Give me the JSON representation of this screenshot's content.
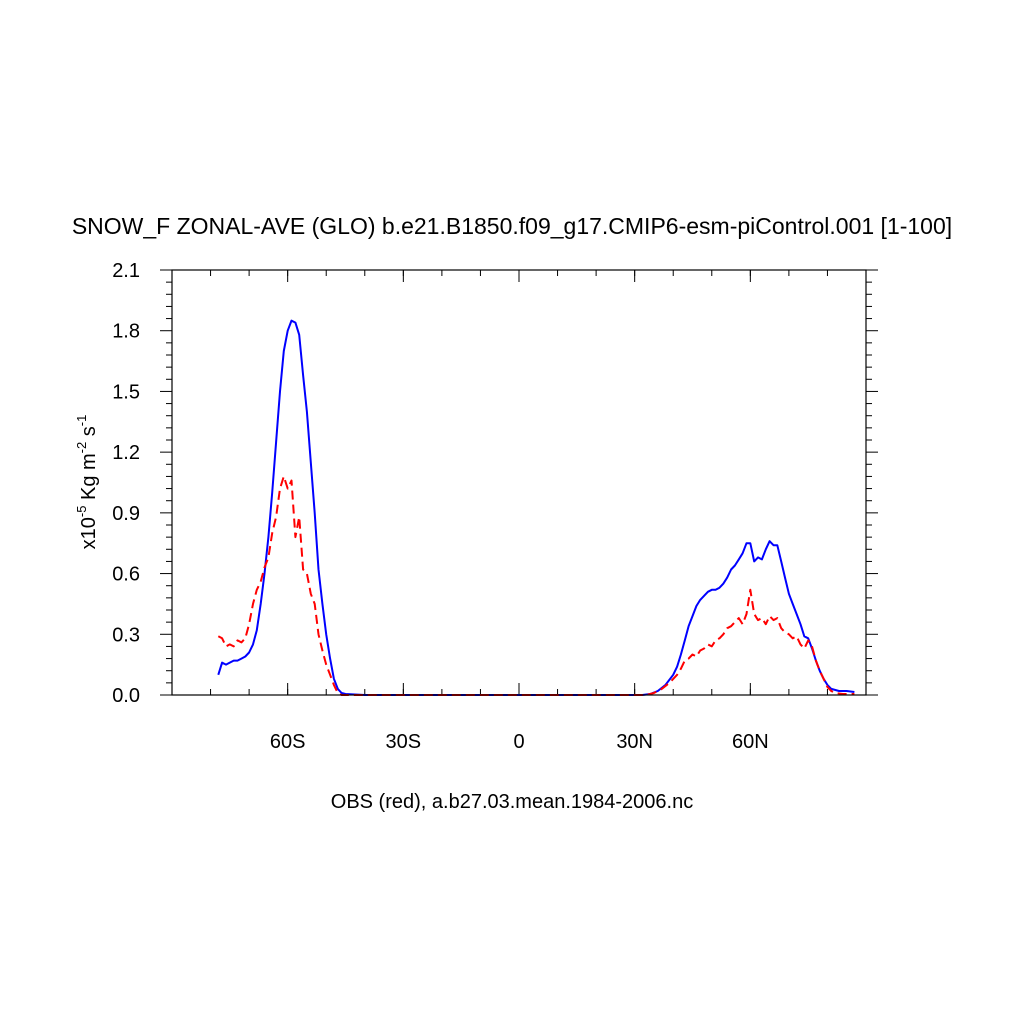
{
  "chart_data": {
    "type": "line",
    "title": "SNOW_F ZONAL-AVE (GLO) b.e21.B1850.f09_g17.CMIP6-esm-piControl.001 [1-100]",
    "xlabel": "OBS (red), a.b27.03.mean.1984-2006.nc",
    "ylabel": {
      "prefix": "x10",
      "exp1": "-5",
      "mid": " Kg m",
      "exp2": "-2",
      "mid2": " s",
      "exp3": "-1"
    },
    "xlim": [
      -90,
      90
    ],
    "ylim": [
      0,
      2.1
    ],
    "y_ticks": [
      {
        "value": 0.0,
        "label": "0.0"
      },
      {
        "value": 0.3,
        "label": "0.3"
      },
      {
        "value": 0.6,
        "label": "0.6"
      },
      {
        "value": 0.9,
        "label": "0.9"
      },
      {
        "value": 1.2,
        "label": "1.2"
      },
      {
        "value": 1.5,
        "label": "1.5"
      },
      {
        "value": 1.8,
        "label": "1.8"
      },
      {
        "value": 2.1,
        "label": "2.1"
      }
    ],
    "x_ticks": [
      {
        "value": -60,
        "label": "60S"
      },
      {
        "value": -30,
        "label": "30S"
      },
      {
        "value": 0,
        "label": "0"
      },
      {
        "value": 30,
        "label": "30N"
      },
      {
        "value": 60,
        "label": "60N"
      }
    ],
    "series": [
      {
        "color": "#0000ff",
        "dash": "solid",
        "points": [
          [
            -78,
            0.1
          ],
          [
            -77,
            0.16
          ],
          [
            -76,
            0.15
          ],
          [
            -75,
            0.16
          ],
          [
            -74,
            0.17
          ],
          [
            -73,
            0.17
          ],
          [
            -72,
            0.18
          ],
          [
            -71,
            0.19
          ],
          [
            -70,
            0.21
          ],
          [
            -69,
            0.25
          ],
          [
            -68,
            0.32
          ],
          [
            -67,
            0.45
          ],
          [
            -66,
            0.6
          ],
          [
            -65,
            0.78
          ],
          [
            -64,
            1.0
          ],
          [
            -63,
            1.25
          ],
          [
            -62,
            1.5
          ],
          [
            -61,
            1.7
          ],
          [
            -60,
            1.8
          ],
          [
            -59,
            1.85
          ],
          [
            -58,
            1.84
          ],
          [
            -57,
            1.78
          ],
          [
            -56,
            1.58
          ],
          [
            -55,
            1.4
          ],
          [
            -54,
            1.15
          ],
          [
            -53,
            0.9
          ],
          [
            -52,
            0.62
          ],
          [
            -51,
            0.45
          ],
          [
            -50,
            0.3
          ],
          [
            -49,
            0.18
          ],
          [
            -48,
            0.08
          ],
          [
            -47,
            0.03
          ],
          [
            -46,
            0.01
          ],
          [
            -45,
            0.005
          ],
          [
            -40,
            0.0
          ],
          [
            -20,
            0.0
          ],
          [
            0,
            0.0
          ],
          [
            20,
            0.0
          ],
          [
            32,
            0.0
          ],
          [
            34,
            0.005
          ],
          [
            36,
            0.02
          ],
          [
            38,
            0.05
          ],
          [
            40,
            0.1
          ],
          [
            41,
            0.14
          ],
          [
            42,
            0.2
          ],
          [
            43,
            0.27
          ],
          [
            44,
            0.34
          ],
          [
            45,
            0.39
          ],
          [
            46,
            0.44
          ],
          [
            47,
            0.47
          ],
          [
            48,
            0.49
          ],
          [
            49,
            0.51
          ],
          [
            50,
            0.52
          ],
          [
            51,
            0.52
          ],
          [
            52,
            0.53
          ],
          [
            53,
            0.55
          ],
          [
            54,
            0.58
          ],
          [
            55,
            0.62
          ],
          [
            56,
            0.64
          ],
          [
            57,
            0.67
          ],
          [
            58,
            0.7
          ],
          [
            59,
            0.75
          ],
          [
            60,
            0.75
          ],
          [
            61,
            0.66
          ],
          [
            62,
            0.68
          ],
          [
            63,
            0.67
          ],
          [
            64,
            0.72
          ],
          [
            65,
            0.76
          ],
          [
            66,
            0.74
          ],
          [
            67,
            0.74
          ],
          [
            68,
            0.66
          ],
          [
            69,
            0.58
          ],
          [
            70,
            0.5
          ],
          [
            71,
            0.45
          ],
          [
            72,
            0.4
          ],
          [
            73,
            0.35
          ],
          [
            74,
            0.29
          ],
          [
            75,
            0.28
          ],
          [
            76,
            0.23
          ],
          [
            77,
            0.17
          ],
          [
            78,
            0.12
          ],
          [
            79,
            0.08
          ],
          [
            80,
            0.05
          ],
          [
            81,
            0.03
          ],
          [
            83,
            0.02
          ],
          [
            85,
            0.02
          ],
          [
            87,
            0.015
          ]
        ]
      },
      {
        "color": "#ff0000",
        "dash": "dashed",
        "points": [
          [
            -78,
            0.29
          ],
          [
            -77,
            0.28
          ],
          [
            -76,
            0.24
          ],
          [
            -75,
            0.25
          ],
          [
            -74,
            0.24
          ],
          [
            -73,
            0.27
          ],
          [
            -72,
            0.26
          ],
          [
            -71,
            0.28
          ],
          [
            -70,
            0.35
          ],
          [
            -69,
            0.45
          ],
          [
            -68,
            0.52
          ],
          [
            -67,
            0.56
          ],
          [
            -66,
            0.63
          ],
          [
            -65,
            0.68
          ],
          [
            -64,
            0.8
          ],
          [
            -63,
            0.88
          ],
          [
            -62,
            1.02
          ],
          [
            -61,
            1.08
          ],
          [
            -60,
            1.02
          ],
          [
            -59,
            1.06
          ],
          [
            -58,
            0.78
          ],
          [
            -57,
            0.88
          ],
          [
            -56,
            0.62
          ],
          [
            -55,
            0.6
          ],
          [
            -54,
            0.5
          ],
          [
            -53,
            0.45
          ],
          [
            -52,
            0.3
          ],
          [
            -51,
            0.22
          ],
          [
            -50,
            0.15
          ],
          [
            -49,
            0.1
          ],
          [
            -48,
            0.05
          ],
          [
            -47,
            0.01
          ],
          [
            -46,
            0.0
          ],
          [
            -40,
            0.0
          ],
          [
            -20,
            0.0
          ],
          [
            0,
            0.0
          ],
          [
            20,
            0.0
          ],
          [
            33,
            0.0
          ],
          [
            35,
            0.01
          ],
          [
            37,
            0.03
          ],
          [
            39,
            0.06
          ],
          [
            41,
            0.1
          ],
          [
            42,
            0.13
          ],
          [
            43,
            0.17
          ],
          [
            44,
            0.18
          ],
          [
            45,
            0.2
          ],
          [
            46,
            0.19
          ],
          [
            47,
            0.22
          ],
          [
            48,
            0.23
          ],
          [
            49,
            0.25
          ],
          [
            50,
            0.24
          ],
          [
            51,
            0.27
          ],
          [
            52,
            0.28
          ],
          [
            53,
            0.3
          ],
          [
            54,
            0.33
          ],
          [
            55,
            0.34
          ],
          [
            56,
            0.36
          ],
          [
            57,
            0.38
          ],
          [
            58,
            0.35
          ],
          [
            59,
            0.4
          ],
          [
            60,
            0.52
          ],
          [
            61,
            0.4
          ],
          [
            62,
            0.37
          ],
          [
            63,
            0.38
          ],
          [
            64,
            0.35
          ],
          [
            65,
            0.39
          ],
          [
            66,
            0.37
          ],
          [
            67,
            0.38
          ],
          [
            68,
            0.33
          ],
          [
            69,
            0.31
          ],
          [
            70,
            0.3
          ],
          [
            71,
            0.28
          ],
          [
            72,
            0.29
          ],
          [
            73,
            0.25
          ],
          [
            74,
            0.23
          ],
          [
            75,
            0.27
          ],
          [
            76,
            0.24
          ],
          [
            77,
            0.17
          ],
          [
            78,
            0.12
          ],
          [
            79,
            0.08
          ],
          [
            80,
            0.04
          ],
          [
            81,
            0.02
          ],
          [
            82,
            0.01
          ],
          [
            84,
            0.005
          ],
          [
            87,
            0.005
          ]
        ]
      }
    ],
    "grid": false,
    "legend": "none"
  }
}
